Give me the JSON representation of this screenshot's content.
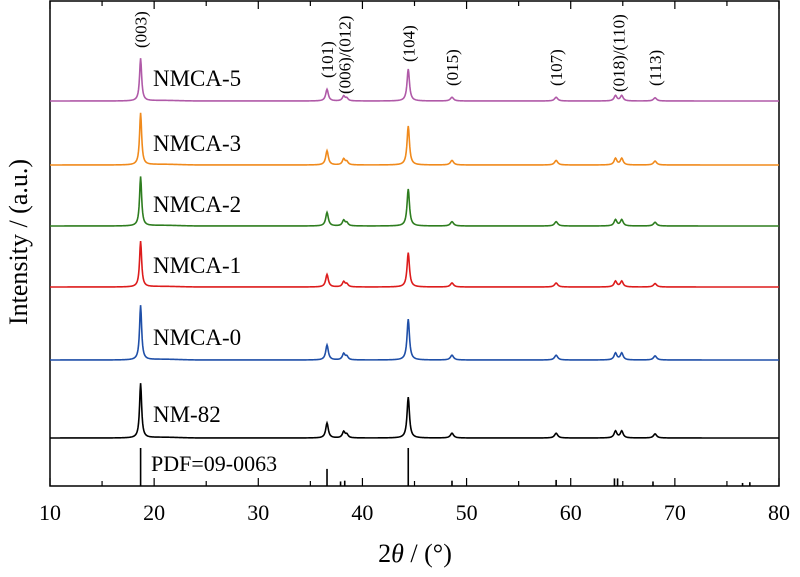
{
  "chart_data": {
    "type": "line",
    "xlabel_parts": [
      "2",
      "θ",
      " / (°)"
    ],
    "ylabel": "Intensity / (a.u.)",
    "xlim": [
      10,
      80
    ],
    "xticks": [
      10,
      20,
      30,
      40,
      50,
      60,
      70,
      80
    ],
    "xtick_labels": [
      "10",
      "20",
      "30",
      "40",
      "50",
      "60",
      "70",
      "80"
    ],
    "grid": false,
    "series": [
      {
        "name": "NMCA-5",
        "color": "#b05aa8",
        "baseline": 0.0,
        "peak_scale": 0.82
      },
      {
        "name": "NMCA-3",
        "color": "#f08a1c",
        "baseline": 1.0,
        "peak_scale": 1.0
      },
      {
        "name": "NMCA-2",
        "color": "#2e7d1f",
        "baseline": 2.0,
        "peak_scale": 0.95
      },
      {
        "name": "NMCA-1",
        "color": "#dd1c1c",
        "baseline": 3.0,
        "peak_scale": 0.88
      },
      {
        "name": "NMCA-0",
        "color": "#1f4fa8",
        "baseline": 4.0,
        "peak_scale": 1.05
      },
      {
        "name": "NM-82",
        "color": "#000000",
        "baseline": 5.0,
        "peak_scale": 1.05
      }
    ],
    "peaks": [
      {
        "x": 18.7,
        "h": 0.8,
        "w": 0.12
      },
      {
        "x": 36.6,
        "h": 0.22,
        "w": 0.15
      },
      {
        "x": 38.2,
        "h": 0.09,
        "w": 0.15
      },
      {
        "x": 38.5,
        "h": 0.05,
        "w": 0.15
      },
      {
        "x": 44.4,
        "h": 0.6,
        "w": 0.14
      },
      {
        "x": 48.6,
        "h": 0.07,
        "w": 0.18
      },
      {
        "x": 58.6,
        "h": 0.07,
        "w": 0.18
      },
      {
        "x": 64.3,
        "h": 0.1,
        "w": 0.16
      },
      {
        "x": 64.9,
        "h": 0.1,
        "w": 0.16
      },
      {
        "x": 68.1,
        "h": 0.06,
        "w": 0.18
      }
    ],
    "hkl_annotations": [
      {
        "label": "(003)",
        "x": 18.7
      },
      {
        "label": "(101)",
        "x": 36.6
      },
      {
        "label": "(006)/(012)",
        "x": 38.3
      },
      {
        "label": "(104)",
        "x": 44.4
      },
      {
        "label": "(015)",
        "x": 48.6
      },
      {
        "label": "(107)",
        "x": 58.6
      },
      {
        "label": "(018)/(110)",
        "x": 64.6
      },
      {
        "label": "(113)",
        "x": 68.1
      }
    ],
    "reference": {
      "label": "PDF=09-0063",
      "lines": [
        {
          "x": 18.7,
          "h": 1.0
        },
        {
          "x": 36.6,
          "h": 0.45
        },
        {
          "x": 37.9,
          "h": 0.12
        },
        {
          "x": 38.3,
          "h": 0.14
        },
        {
          "x": 44.4,
          "h": 1.0
        },
        {
          "x": 48.6,
          "h": 0.14
        },
        {
          "x": 58.6,
          "h": 0.16
        },
        {
          "x": 64.2,
          "h": 0.2
        },
        {
          "x": 64.5,
          "h": 0.2
        },
        {
          "x": 67.9,
          "h": 0.12
        },
        {
          "x": 76.5,
          "h": 0.08
        },
        {
          "x": 77.2,
          "h": 0.1
        }
      ]
    }
  }
}
